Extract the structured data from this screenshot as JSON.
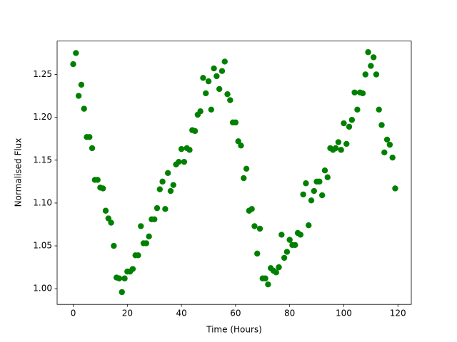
{
  "chart_data": {
    "type": "scatter",
    "x_label": "Time (Hours)",
    "y_label": "Normalised Flux",
    "color": "#008000",
    "grid": false,
    "x": [
      0,
      1,
      2,
      3,
      4,
      5,
      6,
      7,
      8,
      9,
      10,
      11,
      12,
      13,
      14,
      15,
      16,
      17,
      18,
      19,
      20,
      21,
      22,
      23,
      24,
      25,
      26,
      27,
      28,
      29,
      30,
      31,
      32,
      33,
      34,
      35,
      36,
      37,
      38,
      39,
      40,
      41,
      42,
      43,
      44,
      45,
      46,
      47,
      48,
      49,
      50,
      51,
      52,
      53,
      54,
      55,
      56,
      57,
      58,
      59,
      60,
      61,
      62,
      63,
      64,
      65,
      66,
      67,
      68,
      69,
      70,
      71,
      72,
      73,
      74,
      75,
      76,
      77,
      78,
      79,
      80,
      81,
      82,
      83,
      84,
      85,
      86,
      87,
      88,
      89,
      90,
      91,
      92,
      93,
      94,
      95,
      96,
      97,
      98,
      99,
      100,
      101,
      102,
      103,
      104,
      105,
      106,
      107,
      108,
      109,
      110,
      111,
      112,
      113,
      114,
      115,
      116,
      117,
      118,
      119
    ],
    "values": [
      1.262,
      1.275,
      1.225,
      1.238,
      1.21,
      1.177,
      1.177,
      1.164,
      1.127,
      1.127,
      1.118,
      1.117,
      1.091,
      1.082,
      1.077,
      1.05,
      1.013,
      1.012,
      0.996,
      1.012,
      1.02,
      1.02,
      1.023,
      1.039,
      1.039,
      1.073,
      1.053,
      1.053,
      1.061,
      1.081,
      1.081,
      1.094,
      1.116,
      1.125,
      1.093,
      1.135,
      1.114,
      1.121,
      1.145,
      1.148,
      1.163,
      1.148,
      1.164,
      1.162,
      1.185,
      1.184,
      1.203,
      1.207,
      1.246,
      1.228,
      1.242,
      1.209,
      1.257,
      1.248,
      1.233,
      1.254,
      1.265,
      1.227,
      1.22,
      1.194,
      1.194,
      1.172,
      1.167,
      1.129,
      1.14,
      1.091,
      1.093,
      1.073,
      1.041,
      1.07,
      1.012,
      1.012,
      1.005,
      1.024,
      1.021,
      1.019,
      1.025,
      1.063,
      1.036,
      1.043,
      1.057,
      1.051,
      1.051,
      1.065,
      1.063,
      1.11,
      1.123,
      1.074,
      1.103,
      1.114,
      1.125,
      1.125,
      1.109,
      1.138,
      1.13,
      1.164,
      1.162,
      1.164,
      1.171,
      1.162,
      1.193,
      1.169,
      1.189,
      1.197,
      1.229,
      1.209,
      1.229,
      1.228,
      1.25,
      1.276,
      1.26,
      1.27,
      1.25,
      1.209,
      1.191,
      1.159,
      1.174,
      1.168,
      1.153,
      1.117
    ],
    "xlim": [
      -5.95,
      124.95
    ],
    "xticks": [
      0,
      20,
      40,
      60,
      80,
      100,
      120
    ],
    "ylim": [
      0.9817,
      1.289
    ],
    "yticks": [
      {
        "value": 1.0,
        "label": "1.00"
      },
      {
        "value": 1.05,
        "label": "1.05"
      },
      {
        "value": 1.1,
        "label": "1.10"
      },
      {
        "value": 1.15,
        "label": "1.15"
      },
      {
        "value": 1.2,
        "label": "1.20"
      },
      {
        "value": 1.25,
        "label": "1.25"
      }
    ]
  }
}
